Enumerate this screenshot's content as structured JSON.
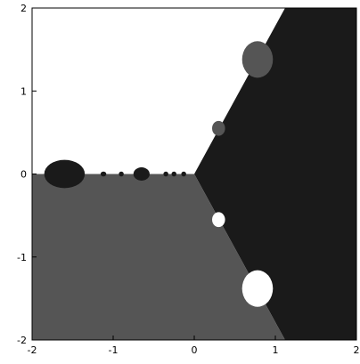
{
  "chart_data": {
    "type": "heatmap",
    "title": "",
    "xlabel": "",
    "ylabel": "",
    "xlim": [
      -2,
      2
    ],
    "ylim": [
      -2,
      2
    ],
    "x_ticks": [
      {
        "value": -2,
        "label": "-2"
      },
      {
        "value": -1,
        "label": "-1"
      },
      {
        "value": 0,
        "label": "0"
      },
      {
        "value": 1,
        "label": "1"
      },
      {
        "value": 2,
        "label": "2"
      }
    ],
    "y_ticks": [
      {
        "value": 2,
        "label": "2"
      },
      {
        "value": 1,
        "label": "1"
      },
      {
        "value": 0,
        "label": "0"
      },
      {
        "value": -1,
        "label": "-1"
      },
      {
        "value": -2,
        "label": "-2"
      }
    ],
    "grid": false,
    "legend": "none",
    "colors": {
      "background": "#ffffff",
      "dark_region": "#1a1a1a",
      "gray_region": "#555555",
      "light_region": "#ffffff",
      "axis": "#000000"
    },
    "regions": [
      {
        "name": "black",
        "color": "#1a1a1a",
        "polygon": [
          [
            0,
            0
          ],
          [
            1.12,
            2
          ],
          [
            2,
            2
          ],
          [
            2,
            -2
          ],
          [
            1.12,
            -2
          ]
        ]
      },
      {
        "name": "gray",
        "color": "#555555",
        "polygon": [
          [
            -2,
            0
          ],
          [
            0,
            0
          ],
          [
            1.12,
            -2
          ],
          [
            -2,
            -2
          ]
        ]
      }
    ],
    "blobs": [
      {
        "cx": -1.6,
        "cy": 0.0,
        "rx": 0.25,
        "ry": 0.17,
        "color": "#1a1a1a"
      },
      {
        "cx": -0.65,
        "cy": 0.0,
        "rx": 0.1,
        "ry": 0.08,
        "color": "#1a1a1a"
      },
      {
        "cx": -1.12,
        "cy": 0.0,
        "rx": 0.035,
        "ry": 0.03,
        "color": "#1a1a1a"
      },
      {
        "cx": -0.9,
        "cy": 0.0,
        "rx": 0.03,
        "ry": 0.03,
        "color": "#1a1a1a"
      },
      {
        "cx": -0.25,
        "cy": 0.0,
        "rx": 0.03,
        "ry": 0.03,
        "color": "#1a1a1a"
      },
      {
        "cx": -0.35,
        "cy": 0.0,
        "rx": 0.03,
        "ry": 0.03,
        "color": "#1a1a1a"
      },
      {
        "cx": -0.13,
        "cy": 0.0,
        "rx": 0.03,
        "ry": 0.03,
        "color": "#1a1a1a"
      },
      {
        "cx": 0.78,
        "cy": 1.38,
        "rx": 0.19,
        "ry": 0.22,
        "color": "#555555"
      },
      {
        "cx": 0.3,
        "cy": 0.55,
        "rx": 0.08,
        "ry": 0.09,
        "color": "#555555"
      },
      {
        "cx": 0.3,
        "cy": -0.55,
        "rx": 0.08,
        "ry": 0.09,
        "color": "#ffffff"
      },
      {
        "cx": 0.78,
        "cy": -1.38,
        "rx": 0.19,
        "ry": 0.22,
        "color": "#ffffff"
      }
    ]
  }
}
